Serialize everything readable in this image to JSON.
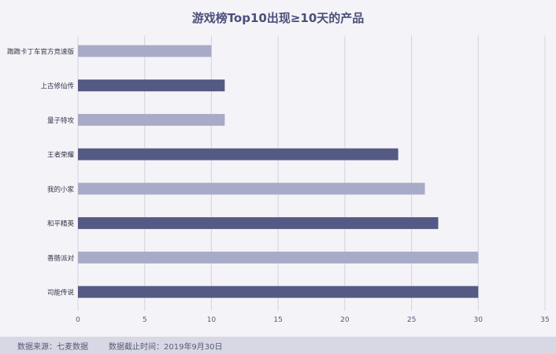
{
  "chart_data": {
    "type": "bar",
    "orientation": "horizontal",
    "title": "游戏榜Top10出现≥10天的产品",
    "categories": [
      "跑跑卡丁车官方竞速版",
      "上古修仙传",
      "量子特攻",
      "王者荣耀",
      "我的小家",
      "和平精英",
      "香肠派对",
      "司能传说"
    ],
    "values": [
      10,
      11,
      11,
      24,
      26,
      27,
      30,
      30
    ],
    "bar_colors": [
      "#a8abc7",
      "#555a84",
      "#a8abc7",
      "#555a84",
      "#a8abc7",
      "#555a84",
      "#a8abc7",
      "#555a84"
    ],
    "xlim": [
      0,
      35
    ],
    "x_ticks": [
      0,
      5,
      10,
      15,
      20,
      25,
      30,
      35
    ],
    "xlabel": "",
    "ylabel": "",
    "grid": "vertical"
  },
  "footer": {
    "source": "数据来源：七麦数据",
    "cutoff": "数据截止时间：2019年9月30日"
  }
}
